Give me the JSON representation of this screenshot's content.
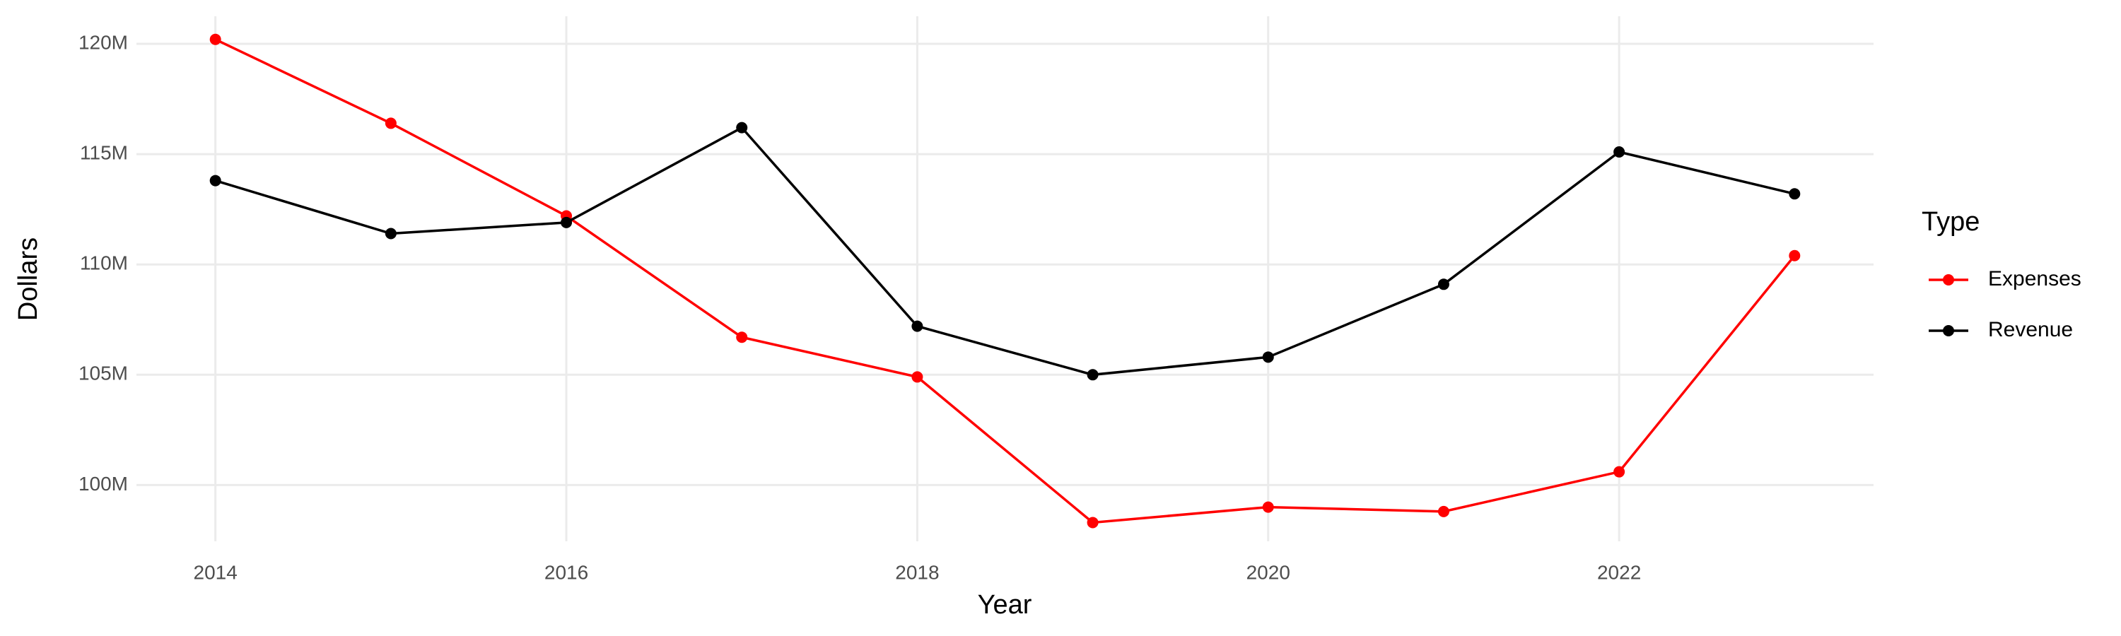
{
  "chart_data": {
    "type": "line",
    "x_label": "Year",
    "y_label": "Dollars",
    "x": [
      2014,
      2015,
      2016,
      2017,
      2018,
      2019,
      2020,
      2021,
      2022,
      2023
    ],
    "series": [
      {
        "name": "Expenses",
        "color": "#ff0000",
        "values": [
          120200000,
          116400000,
          112200000,
          106700000,
          104900000,
          98300000,
          99000000,
          98800000,
          100600000,
          110400000
        ]
      },
      {
        "name": "Revenue",
        "color": "#000000",
        "values": [
          113800000,
          111400000,
          111900000,
          116200000,
          107200000,
          105000000,
          105800000,
          109100000,
          115100000,
          113200000
        ]
      }
    ],
    "legend_title": "Type",
    "legend_position": "right",
    "xlim": [
      2013.55,
      2023.45
    ],
    "xticks": [
      2014,
      2016,
      2018,
      2020,
      2022
    ],
    "ylim": [
      97450000,
      121250000
    ],
    "yticks": [
      {
        "value": 100000000,
        "label": "100M"
      },
      {
        "value": 105000000,
        "label": "105M"
      },
      {
        "value": 110000000,
        "label": "110M"
      },
      {
        "value": 115000000,
        "label": "115M"
      },
      {
        "value": 120000000,
        "label": "120M"
      }
    ],
    "grid": true
  }
}
